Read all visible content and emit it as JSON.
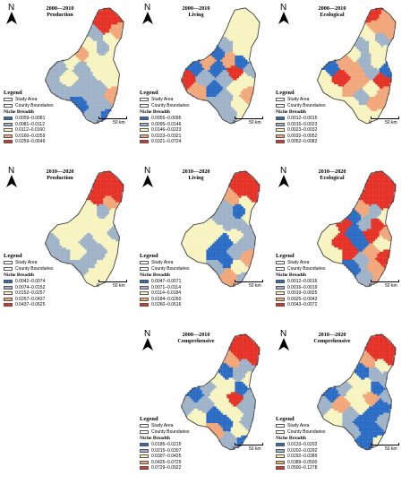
{
  "north_letter": "N",
  "legend_title": "Legend",
  "study_area": "Study Area",
  "county_boundaries": "County Boundaries",
  "niche_breadth": "Niche Breadth",
  "scale_zero": "0",
  "scale_distance": "50 km",
  "class_colors": [
    "#2b6cc4",
    "#9fb3c8",
    "#f8f4c2",
    "#f2a77b",
    "#e53227"
  ],
  "panels": [
    {
      "period": "2000—2010",
      "dimension": "Production",
      "classes": [
        "0.0059–0.0081",
        "0.0081–0.0112",
        "0.0112–0.0160",
        "0.0160–0.0259",
        "0.0259–0.0649"
      ],
      "county_classes": [
        4,
        4,
        4,
        3,
        1,
        2,
        2,
        1,
        3,
        2,
        2,
        2,
        2,
        1,
        1,
        2,
        2,
        1,
        2,
        1,
        2,
        1,
        1,
        1,
        3,
        1,
        1,
        0,
        1,
        0
      ]
    },
    {
      "period": "2000—2010",
      "dimension": "Living",
      "classes": [
        "0.0055–0.0095",
        "0.0095–0.0146",
        "0.0146–0.0223",
        "0.0223–0.0321",
        "0.0321–0.0724"
      ],
      "county_classes": [
        2,
        2,
        2,
        2,
        2,
        2,
        1,
        2,
        0,
        2,
        3,
        3,
        0,
        0,
        0,
        1,
        4,
        4,
        1,
        1,
        2,
        0,
        2,
        3,
        3,
        1,
        2,
        1,
        1,
        2
      ]
    },
    {
      "period": "2000—2010",
      "dimension": "Ecological",
      "classes": [
        "0.0012–0.0015",
        "0.0015–0.0023",
        "0.0023–0.0032",
        "0.0032–0.0052",
        "0.0052–0.0082"
      ],
      "county_classes": [
        4,
        3,
        3,
        3,
        2,
        1,
        1,
        2,
        2,
        2,
        3,
        1,
        2,
        0,
        3,
        0,
        1,
        2,
        4,
        3,
        4,
        3,
        2,
        2,
        3,
        1,
        3,
        2,
        2,
        2
      ]
    },
    {
      "period": "2010—2020",
      "dimension": "Production",
      "classes": [
        "0.0042–0.0074",
        "0.0074–0.0152",
        "0.0152–0.0257",
        "0.0257–0.0437",
        "0.0437–0.0625"
      ],
      "county_classes": [
        4,
        4,
        4,
        4,
        4,
        3,
        2,
        1,
        2,
        2,
        2,
        2,
        2,
        2,
        2,
        1,
        2,
        1,
        2,
        1,
        2,
        2,
        1,
        1,
        2,
        1,
        2,
        1,
        2,
        2
      ]
    },
    {
      "period": "2010—2020",
      "dimension": "Living",
      "classes": [
        "0.0047–0.0071",
        "0.0071–0.0114",
        "0.0114–0.0184",
        "0.0184–0.0260",
        "0.0260–0.0616"
      ],
      "county_classes": [
        4,
        4,
        4,
        4,
        3,
        2,
        1,
        0,
        1,
        2,
        2,
        1,
        1,
        2,
        2,
        1,
        2,
        2,
        2,
        0,
        1,
        0,
        1,
        2,
        3,
        0,
        2,
        1,
        3,
        1
      ]
    },
    {
      "period": "2010—2020",
      "dimension": "Ecological",
      "classes": [
        "0.0012–0.0016",
        "0.0016–0.0019",
        "0.0019–0.0025",
        "0.0025–0.0043",
        "0.0043–0.0072"
      ],
      "county_classes": [
        4,
        4,
        4,
        4,
        4,
        4,
        3,
        1,
        0,
        2,
        4,
        1,
        4,
        2,
        0,
        3,
        4,
        2,
        4,
        0,
        2,
        4,
        3,
        2,
        4,
        1,
        3,
        0,
        1,
        3
      ]
    },
    null,
    {
      "period": "2000—2010",
      "dimension": "Comprehensive",
      "classes": [
        "0.0185–0.0215",
        "0.0215–0.0307",
        "0.0307–0.0425",
        "0.0425–0.0729",
        "0.0729–0.0922"
      ],
      "county_classes": [
        4,
        4,
        4,
        4,
        3,
        1,
        0,
        1,
        2,
        2,
        1,
        2,
        0,
        0,
        2,
        1,
        4,
        1,
        1,
        2,
        1,
        0,
        2,
        2,
        1,
        0,
        2,
        3,
        1,
        0
      ]
    },
    {
      "period": "2010—2020",
      "dimension": "Comprehensive",
      "classes": [
        "0.0133–0.0202",
        "0.0202–0.0292",
        "0.0292–0.0389",
        "0.0389–0.0500",
        "0.0500–0.1278"
      ],
      "county_classes": [
        4,
        4,
        4,
        4,
        3,
        2,
        0,
        1,
        2,
        1,
        1,
        2,
        0,
        0,
        2,
        1,
        3,
        1,
        3,
        2,
        0,
        1,
        0,
        2,
        1,
        0,
        0,
        1,
        0,
        2
      ]
    }
  ]
}
